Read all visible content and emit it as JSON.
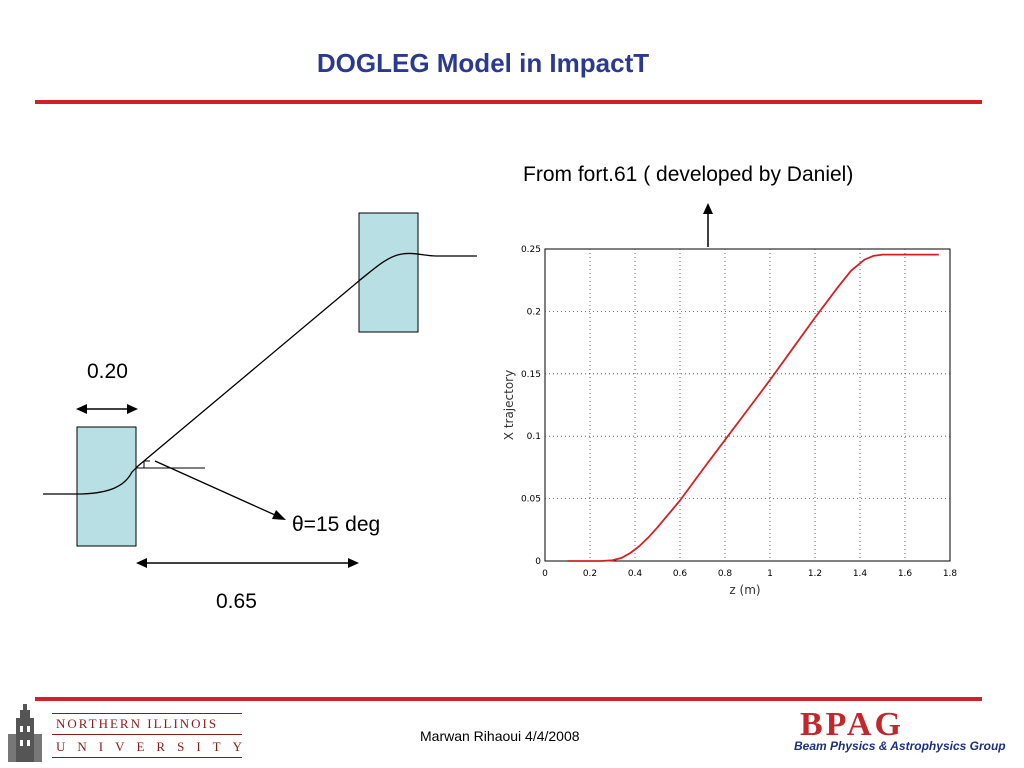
{
  "title": "DOGLEG Model in ImpactT",
  "colors": {
    "title": "#2b3990",
    "rule": "#d12027",
    "magnet_fill": "#b8dfe3",
    "curve": "#d12027",
    "niu": "#8b1a1a",
    "bpag": "#c1272d"
  },
  "diagram": {
    "dim_magnet_length": "0.20",
    "dim_separation": "0.65",
    "angle_label": "θ=15 deg"
  },
  "source_note": "From fort.61 ( developed by Daniel)",
  "chart_data": {
    "type": "line",
    "xlabel": "z (m)",
    "ylabel": "X trajectory",
    "xlim": [
      0,
      1.8
    ],
    "ylim": [
      0,
      0.25
    ],
    "x_ticks": [
      "0",
      "0.2",
      "0.4",
      "0.6",
      "0.8",
      "1",
      "1.2",
      "1.4",
      "1.6",
      "1.8"
    ],
    "y_ticks": [
      "0",
      "0.05",
      "0.1",
      "0.15",
      "0.2",
      "0.25"
    ],
    "grid": true,
    "series": [
      {
        "color": "#d12027",
        "x": [
          0.1,
          0.25,
          0.3,
          0.34,
          0.38,
          0.42,
          0.46,
          0.5,
          0.6,
          0.7,
          0.8,
          0.9,
          1.0,
          1.1,
          1.2,
          1.3,
          1.36,
          1.42,
          1.46,
          1.5,
          1.55,
          1.6,
          1.65,
          1.7,
          1.75
        ],
        "y": [
          0.0,
          0.0,
          0.0006,
          0.0025,
          0.0065,
          0.012,
          0.019,
          0.027,
          0.0485,
          0.073,
          0.097,
          0.121,
          0.145,
          0.17,
          0.195,
          0.219,
          0.2325,
          0.2415,
          0.2445,
          0.2455,
          0.2455,
          0.2455,
          0.2455,
          0.2455,
          0.2455
        ]
      }
    ]
  },
  "footer": {
    "author_date": "Marwan Rihaoui 4/4/2008",
    "niu_line1": "NORTHERN ILLINOIS",
    "niu_line2": "UNIVERSITY",
    "bpag_logo": "BPAG",
    "bpag_sub": "Beam Physics & Astrophysics Group"
  }
}
